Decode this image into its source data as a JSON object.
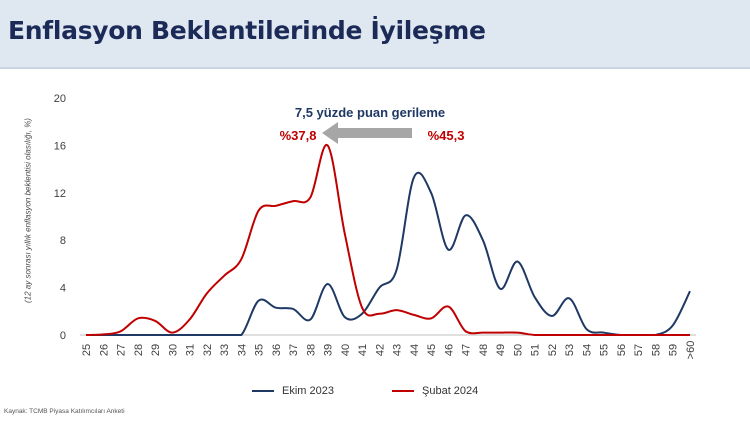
{
  "header": {
    "title": "Enflasyon Beklentilerinde İyileşme"
  },
  "source": "Kaynak: TCMB Piyasa Katılımcıları Anketi",
  "colors": {
    "ekim": "#1f3864",
    "subat": "#c00000",
    "arrow": "#a6a6a6",
    "header_bg": "#dfe7f1",
    "title": "#1b2a57"
  },
  "chart_data": {
    "type": "line",
    "ylabel": "(12 ay sonrası yıllık enflasyon beklentisi olasılığı, %)",
    "xlabel": "",
    "ylim": [
      0,
      20
    ],
    "yticks": [
      0,
      4,
      8,
      12,
      16,
      20
    ],
    "grid": false,
    "legend_position": "bottom",
    "categories": [
      "25",
      "26",
      "27",
      "28",
      "29",
      "30",
      "31",
      "32",
      "33",
      "34",
      "35",
      "36",
      "37",
      "38",
      "39",
      "40",
      "41",
      "42",
      "43",
      "44",
      "45",
      "46",
      "47",
      "48",
      "49",
      "50",
      "51",
      "52",
      "53",
      "54",
      "55",
      "56",
      "57",
      "58",
      "59",
      ">60"
    ],
    "series": [
      {
        "name": "Ekim 2023",
        "color": "#1f3864",
        "values": [
          0,
          0,
          0,
          0,
          0,
          0,
          0,
          0,
          0,
          0,
          2.9,
          2.3,
          2.2,
          1.3,
          4.3,
          1.5,
          1.8,
          4.0,
          5.5,
          13.3,
          12.0,
          7.2,
          10.1,
          8.0,
          3.9,
          6.2,
          3.2,
          1.6,
          3.1,
          0.5,
          0.2,
          0,
          0,
          0,
          0.8,
          3.7
        ]
      },
      {
        "name": "Şubat 2024",
        "color": "#c00000",
        "values": [
          0,
          0.05,
          0.3,
          1.4,
          1.2,
          0.2,
          1.3,
          3.5,
          5.0,
          6.4,
          10.5,
          10.9,
          11.3,
          11.6,
          16.0,
          8.5,
          2.3,
          1.8,
          2.1,
          1.7,
          1.4,
          2.4,
          0.3,
          0.2,
          0.2,
          0.2,
          0,
          0,
          0,
          0,
          0,
          0,
          0,
          0,
          0,
          0
        ]
      }
    ],
    "annotations": {
      "headline": "7,5 yüzde puan gerileme",
      "left_value": "%37,8",
      "right_value": "%45,3"
    }
  }
}
